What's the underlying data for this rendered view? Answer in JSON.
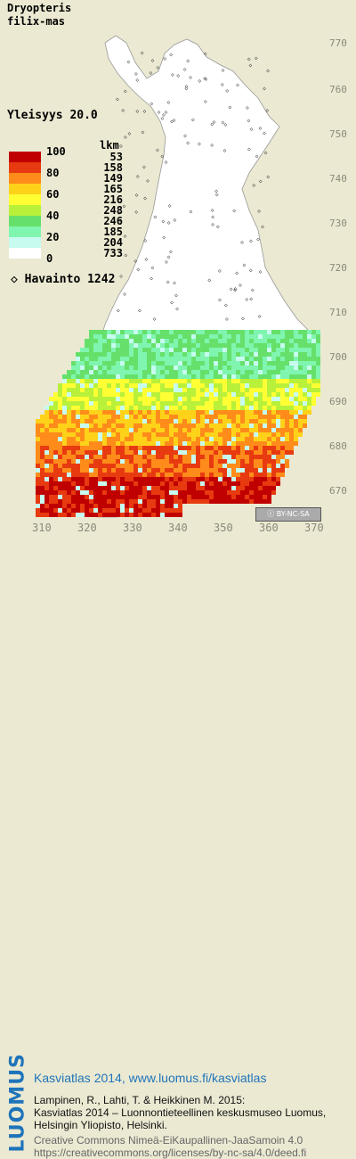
{
  "title": "Dryopteris\nfilix-mas",
  "yleisyys": "Yleisyys  20.0",
  "legend": {
    "header": "lkm",
    "levels": [
      {
        "label": "100",
        "count": "53",
        "color": "#c00000"
      },
      {
        "label": "80",
        "count": "158",
        "color": "#e83a10"
      },
      {
        "label": "",
        "count": "149",
        "color": "#ff8c1a"
      },
      {
        "label": "60",
        "count": "165",
        "color": "#ffd21a"
      },
      {
        "label": "",
        "count": "216",
        "color": "#ffff33"
      },
      {
        "label": "40",
        "count": "248",
        "color": "#b8f03a"
      },
      {
        "label": "",
        "count": "246",
        "color": "#66e06a"
      },
      {
        "label": "20",
        "count": "185",
        "color": "#7ff5b0"
      },
      {
        "label": "",
        "count": "204",
        "color": "#c8fbf0"
      },
      {
        "label": "0",
        "count": "733",
        "color": "#ffffff"
      }
    ]
  },
  "havainto": "Havainto 1242",
  "y_ticks": [
    "770",
    "760",
    "750",
    "740",
    "730",
    "720",
    "710",
    "700",
    "690",
    "680",
    "670"
  ],
  "x_ticks": [
    "310",
    "320",
    "330",
    "340",
    "350",
    "360",
    "370"
  ],
  "license_badge": "BY-NC-SA",
  "footer": {
    "brand": "LUOMUS",
    "line1": "Kasviatlas 2014, www.luomus.fi/kasviatlas",
    "line2": "Lampinen, R., Lahti, T. & Heikkinen M. 2015:",
    "line3": "Kasviatlas 2014 – Luonnontieteellinen keskusmuseo Luomus,",
    "line4": "Helsingin Yliopisto, Helsinki.",
    "line5": "Creative Commons Nimeä-EiKaupallinen-JaaSamoin 4.0",
    "line6": "https://creativecommons.org/licenses/by-nc-sa/4.0/deed.fi"
  },
  "colors": {
    "background": "#ebe9d2",
    "land": "#ffffff",
    "brand": "#1f74b9"
  }
}
